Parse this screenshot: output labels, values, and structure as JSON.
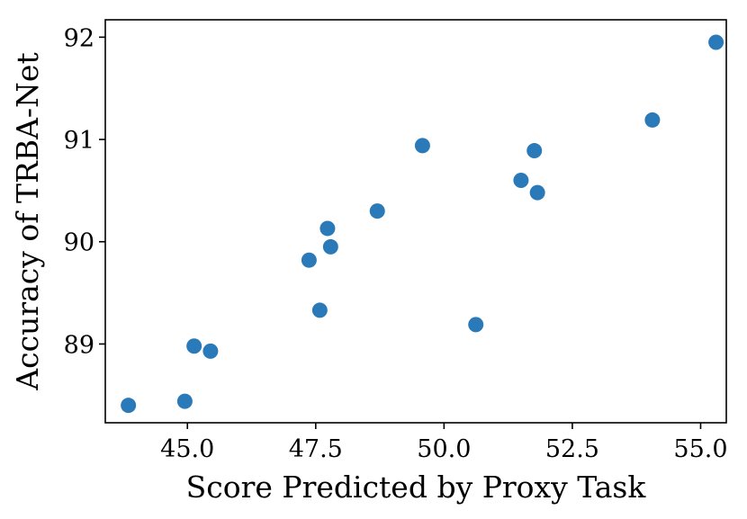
{
  "chart_data": {
    "type": "scatter",
    "title": "",
    "xlabel": "Score Predicted by Proxy Task",
    "ylabel": "Accuracy of TRBA-Net",
    "xlim": [
      43.4,
      55.5
    ],
    "ylim": [
      88.23,
      92.17
    ],
    "xticks": [
      45.0,
      47.5,
      50.0,
      52.5,
      55.0
    ],
    "xtick_labels": [
      "45.0",
      "47.5",
      "50.0",
      "52.5",
      "55.0"
    ],
    "yticks": [
      89,
      90,
      91,
      92
    ],
    "ytick_labels": [
      "89",
      "90",
      "91",
      "92"
    ],
    "grid": false,
    "point_color": "#2a7ab9",
    "points": [
      {
        "x": 43.85,
        "y": 88.4
      },
      {
        "x": 44.95,
        "y": 88.44
      },
      {
        "x": 45.13,
        "y": 88.98
      },
      {
        "x": 45.45,
        "y": 88.93
      },
      {
        "x": 47.37,
        "y": 89.82
      },
      {
        "x": 47.58,
        "y": 89.33
      },
      {
        "x": 47.73,
        "y": 90.13
      },
      {
        "x": 47.79,
        "y": 89.95
      },
      {
        "x": 48.7,
        "y": 90.3
      },
      {
        "x": 49.58,
        "y": 90.94
      },
      {
        "x": 50.62,
        "y": 89.19
      },
      {
        "x": 51.5,
        "y": 90.6
      },
      {
        "x": 51.76,
        "y": 90.89
      },
      {
        "x": 51.82,
        "y": 90.48
      },
      {
        "x": 54.06,
        "y": 91.19
      },
      {
        "x": 55.3,
        "y": 91.95
      }
    ]
  }
}
